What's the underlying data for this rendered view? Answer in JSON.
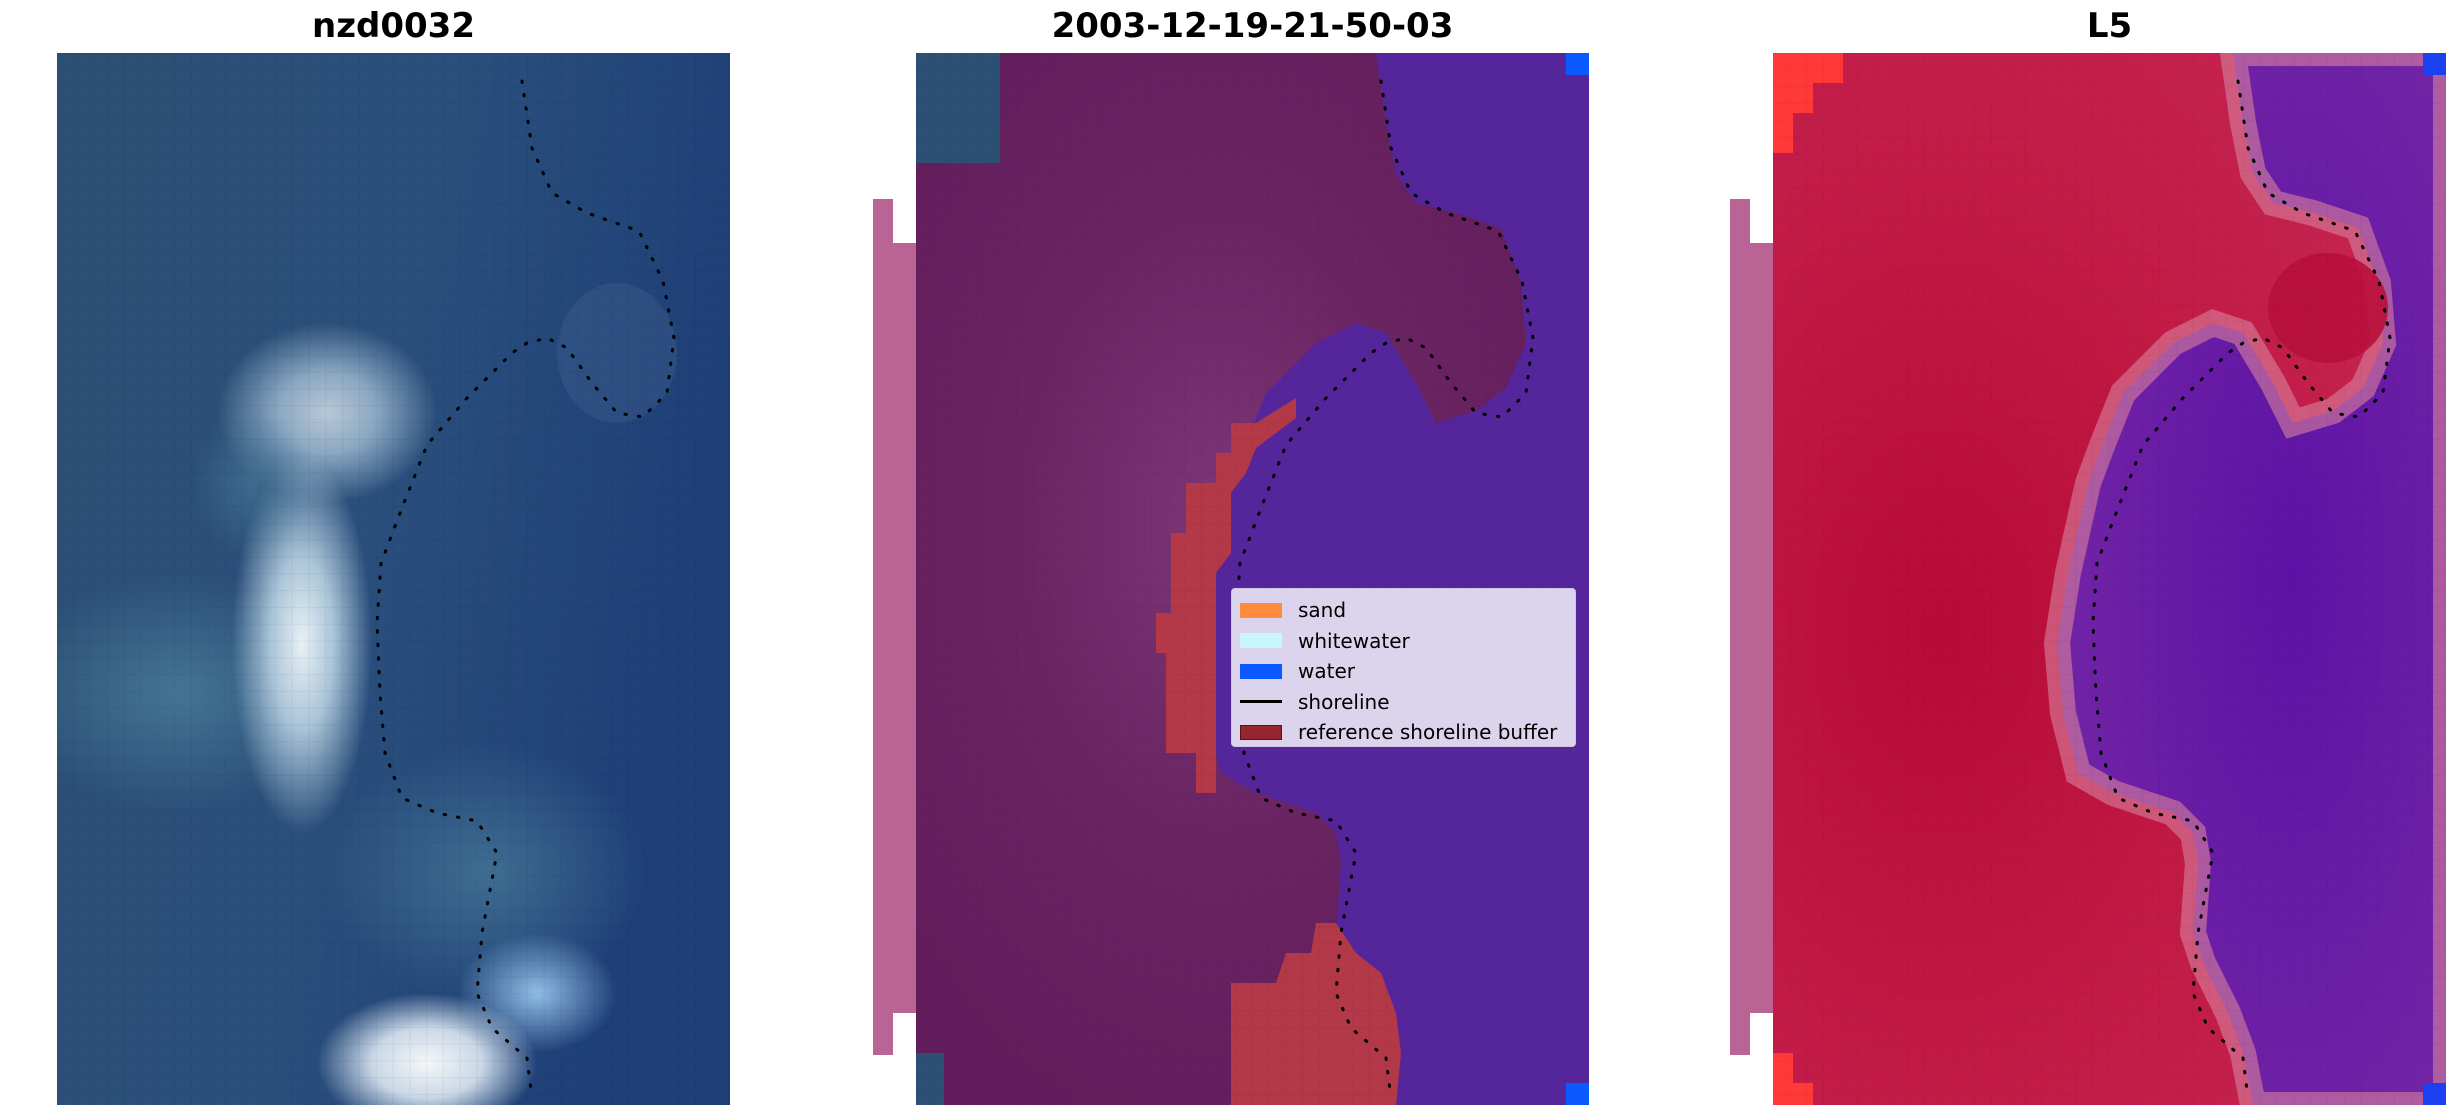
{
  "panels": [
    {
      "title": "nzd0032"
    },
    {
      "title": "2003-12-19-21-50-03"
    },
    {
      "title": "L5"
    }
  ],
  "legend": {
    "items": [
      {
        "label": "sand",
        "type": "patch",
        "color": "#ff8c3c"
      },
      {
        "label": "whitewater",
        "type": "patch",
        "color": "#c8f5ff"
      },
      {
        "label": "water",
        "type": "patch",
        "color": "#0a5aff"
      },
      {
        "label": "shoreline",
        "type": "line",
        "color": "#000000"
      },
      {
        "label": "reference shoreline buffer",
        "type": "patch",
        "color": "#96262e"
      }
    ]
  },
  "colors": {
    "land_purple": "#672060",
    "water_violet": "#55269b",
    "buffer_red": "#b33848",
    "nodata_pink": "#b96494",
    "index_red": "#be1840",
    "index_violet": "#6a22a6",
    "rgb_deep_blue": "#1f3d70"
  }
}
